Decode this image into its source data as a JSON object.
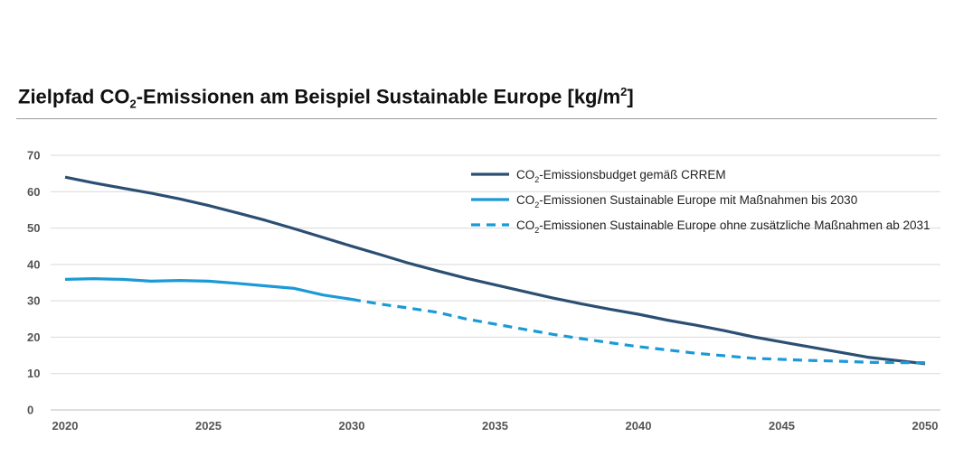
{
  "title": {
    "pre": "Zielpfad CO",
    "sub": "2",
    "mid": "-Emissionen am Beispiel Sustainable Europe [kg/m",
    "sup": "2",
    "post": "]"
  },
  "colors": {
    "budget": "#2b4f72",
    "actual": "#1a9ad6",
    "grid": "#d9d9d9",
    "axis": "#555555"
  },
  "chart_data": {
    "type": "line",
    "x": [
      2020,
      2021,
      2022,
      2023,
      2024,
      2025,
      2026,
      2027,
      2028,
      2029,
      2030,
      2031,
      2032,
      2033,
      2034,
      2035,
      2036,
      2037,
      2038,
      2039,
      2040,
      2041,
      2042,
      2043,
      2044,
      2045,
      2046,
      2047,
      2048,
      2049,
      2050
    ],
    "xticks": [
      2020,
      2025,
      2030,
      2035,
      2040,
      2045,
      2050
    ],
    "yticks": [
      0,
      10,
      20,
      30,
      40,
      50,
      60,
      70
    ],
    "ylim": [
      0,
      70
    ],
    "xlim": [
      2020,
      2050
    ],
    "grid": true,
    "legend_position": "top-right",
    "series": [
      {
        "name_pre": "CO",
        "name_sub": "2",
        "name_post": "-Emissionsbudget gemäß CRREM",
        "style": "solid",
        "color_key": "budget",
        "x": [
          2020,
          2021,
          2022,
          2023,
          2024,
          2025,
          2026,
          2027,
          2028,
          2029,
          2030,
          2031,
          2032,
          2033,
          2034,
          2035,
          2036,
          2037,
          2038,
          2039,
          2040,
          2041,
          2042,
          2043,
          2044,
          2045,
          2046,
          2047,
          2048,
          2049,
          2050
        ],
        "values": [
          64.0,
          62.4,
          61.0,
          59.6,
          58.0,
          56.2,
          54.2,
          52.1,
          49.8,
          47.4,
          45.0,
          42.7,
          40.3,
          38.2,
          36.2,
          34.4,
          32.6,
          30.8,
          29.2,
          27.7,
          26.3,
          24.7,
          23.3,
          21.8,
          20.1,
          18.7,
          17.3,
          15.9,
          14.5,
          13.6,
          12.7
        ]
      },
      {
        "name_pre": "CO",
        "name_sub": "2",
        "name_post": "-Emissionen Sustainable Europe mit Maßnahmen bis 2030",
        "style": "solid",
        "color_key": "actual",
        "x": [
          2020,
          2021,
          2022,
          2023,
          2024,
          2025,
          2026,
          2027,
          2028,
          2029,
          2030
        ],
        "values": [
          35.9,
          36.1,
          35.9,
          35.4,
          35.6,
          35.4,
          34.8,
          34.1,
          33.4,
          31.6,
          30.4
        ]
      },
      {
        "name_pre": "CO",
        "name_sub": "2",
        "name_post": "-Emissionen Sustainable Europe ohne zusätzliche Maßnahmen ab 2031",
        "style": "dashed",
        "color_key": "actual",
        "x": [
          2030,
          2031,
          2032,
          2033,
          2034,
          2035,
          2036,
          2037,
          2038,
          2039,
          2040,
          2041,
          2042,
          2043,
          2044,
          2045,
          2046,
          2047,
          2048,
          2049,
          2050
        ],
        "values": [
          30.4,
          29.1,
          28.0,
          26.8,
          25.0,
          23.6,
          22.2,
          20.8,
          19.6,
          18.5,
          17.4,
          16.5,
          15.6,
          14.9,
          14.2,
          13.9,
          13.6,
          13.4,
          13.1,
          13.0,
          13.0
        ]
      }
    ]
  }
}
